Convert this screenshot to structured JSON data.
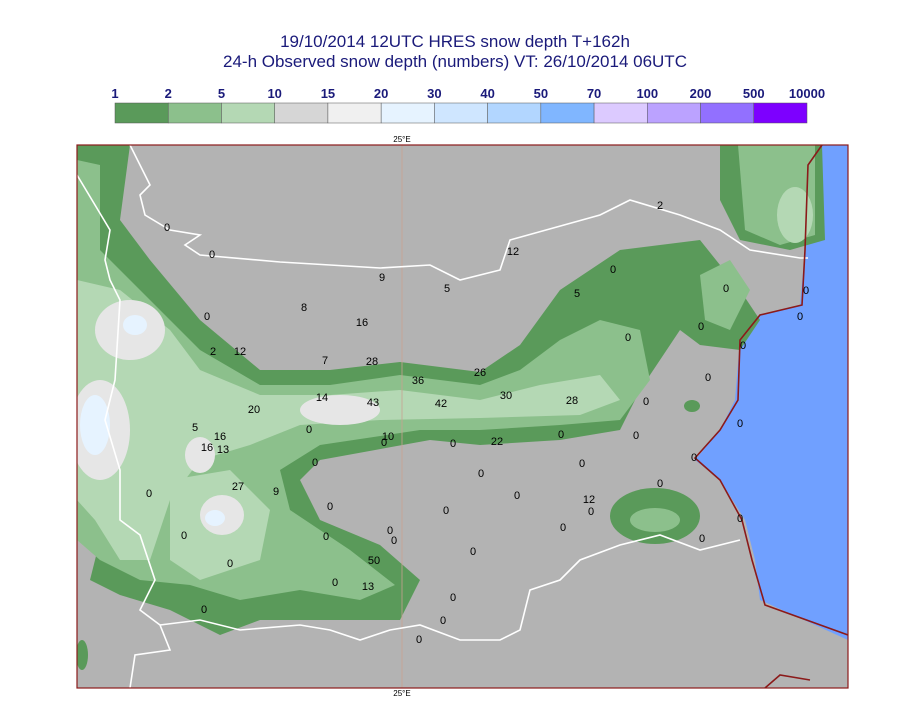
{
  "header": {
    "title": "19/10/2014 12UTC HRES snow depth T+162h",
    "subtitle": "24-h Observed snow depth (numbers) VT: 26/10/2014 06UTC"
  },
  "legend": {
    "labels": [
      1,
      2,
      5,
      10,
      15,
      20,
      30,
      40,
      50,
      70,
      100,
      200,
      500,
      10000
    ],
    "colors": [
      "#5a9a5a",
      "#8cc08c",
      "#b4d8b4",
      "#d6d6d6",
      "#f0f0f0",
      "#e6f3ff",
      "#cfe6ff",
      "#b2d6ff",
      "#80b6ff",
      "#dccaff",
      "#bba2ff",
      "#9270ff",
      "#7d00ff"
    ]
  },
  "map": {
    "meridian_labels": [
      "25°E",
      "25°E"
    ]
  },
  "observations": [
    0,
    0,
    9,
    5,
    12,
    2,
    0,
    5,
    0,
    0,
    0,
    0,
    0,
    0,
    0,
    8,
    16,
    0,
    2,
    12,
    7,
    28,
    36,
    26,
    14,
    43,
    42,
    30,
    28,
    0,
    20,
    5,
    16,
    16,
    13,
    0,
    10,
    0,
    0,
    22,
    0,
    0,
    0,
    0,
    0,
    0,
    0,
    0,
    27,
    9,
    0,
    0,
    0,
    12,
    0,
    0,
    0,
    0,
    0,
    0,
    0,
    0,
    0,
    0,
    50,
    0,
    0,
    13,
    0,
    0,
    0,
    0
  ]
}
